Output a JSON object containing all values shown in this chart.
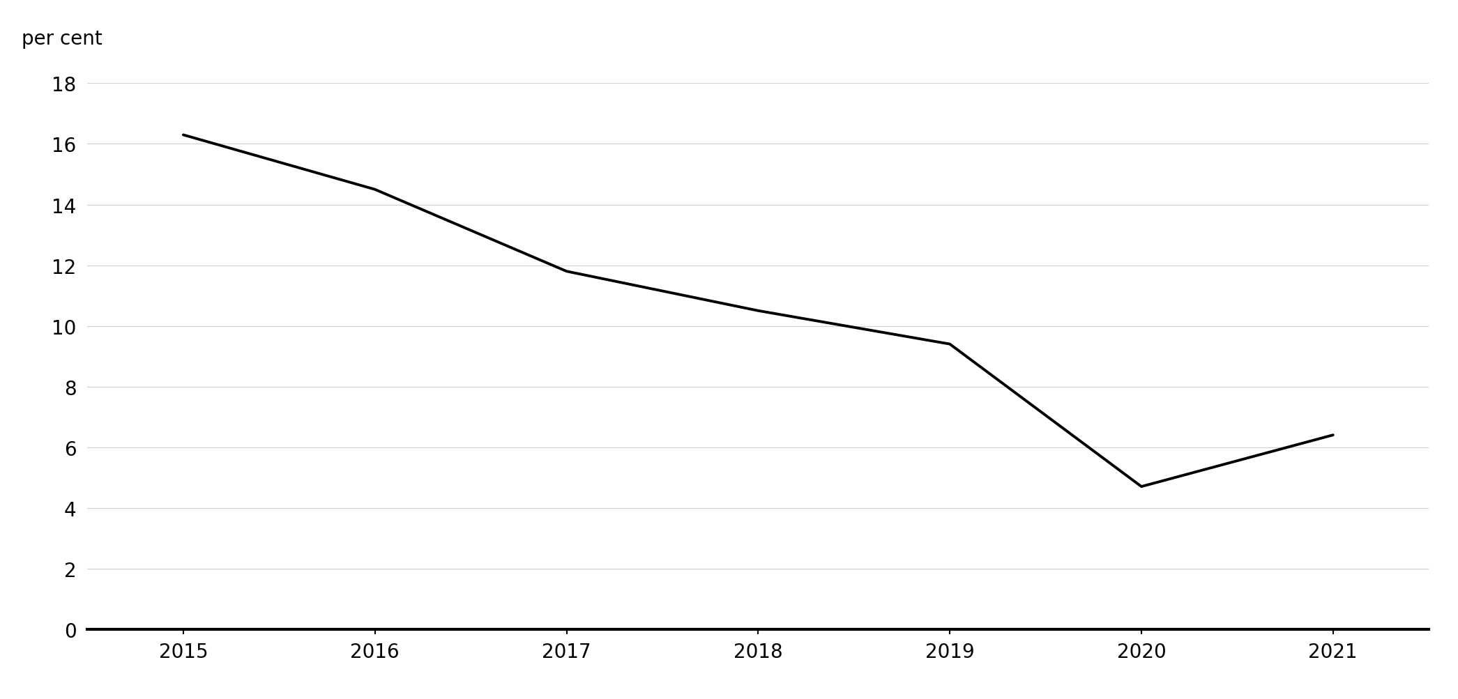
{
  "years": [
    2015,
    2016,
    2017,
    2018,
    2019,
    2020,
    2021
  ],
  "values": [
    16.3,
    14.5,
    11.8,
    10.5,
    9.4,
    4.7,
    6.4
  ],
  "ylabel": "per cent",
  "ylim": [
    0,
    18
  ],
  "yticks": [
    0,
    2,
    4,
    6,
    8,
    10,
    12,
    14,
    16,
    18
  ],
  "xlim_left": 2014.5,
  "xlim_right": 2021.5,
  "xticks": [
    2015,
    2016,
    2017,
    2018,
    2019,
    2020,
    2021
  ],
  "line_color": "#000000",
  "line_width": 2.8,
  "background_color": "#ffffff",
  "grid_color": "#d0d0d0",
  "axis_color": "#000000",
  "tick_label_fontsize": 20,
  "ylabel_fontsize": 20
}
